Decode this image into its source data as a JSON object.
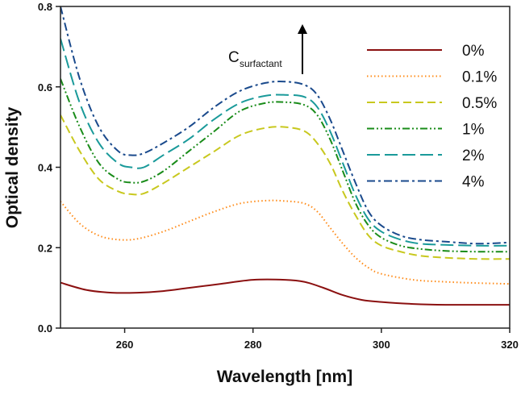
{
  "chart_data": {
    "type": "line",
    "title": "",
    "xlabel": "Wavelength [nm]",
    "ylabel": "Optical density",
    "xlim": [
      250,
      320
    ],
    "ylim": [
      0.0,
      0.8
    ],
    "xticks": [
      "260",
      "280",
      "300",
      "320"
    ],
    "xtick_values": [
      260,
      280,
      300,
      320
    ],
    "yticks": [
      "0.0",
      "0.2",
      "0.4",
      "0.6",
      "0.8"
    ],
    "ytick_values": [
      0.0,
      0.2,
      0.4,
      0.6,
      0.8
    ],
    "grid": false,
    "legend_position": "top-right",
    "annotation": {
      "main": "C",
      "subscript": "surfactant",
      "arrow": "up"
    },
    "series": [
      {
        "name": "0%",
        "color": "#8b1010",
        "dash": "solid",
        "x": [
          250,
          254,
          258,
          262,
          266,
          270,
          275,
          280,
          285,
          288,
          291,
          294,
          297,
          300,
          305,
          310,
          320
        ],
        "y": [
          0.113,
          0.095,
          0.088,
          0.088,
          0.092,
          0.1,
          0.11,
          0.12,
          0.12,
          0.115,
          0.1,
          0.082,
          0.07,
          0.065,
          0.06,
          0.058,
          0.058
        ]
      },
      {
        "name": "0.1%",
        "color": "#ff8c1a",
        "dash": "dot",
        "x": [
          250,
          253,
          256,
          259,
          262,
          266,
          270,
          274,
          278,
          282,
          285,
          288,
          290,
          292,
          294,
          296,
          298,
          300,
          305,
          310,
          315,
          320
        ],
        "y": [
          0.315,
          0.26,
          0.23,
          0.22,
          0.222,
          0.24,
          0.265,
          0.29,
          0.31,
          0.317,
          0.316,
          0.31,
          0.29,
          0.25,
          0.21,
          0.175,
          0.15,
          0.135,
          0.12,
          0.115,
          0.112,
          0.11
        ]
      },
      {
        "name": "0.5%",
        "color": "#c8c81e",
        "dash": "dash",
        "x": [
          250,
          253,
          256,
          259,
          261,
          263,
          266,
          270,
          274,
          278,
          282,
          285,
          288,
          290,
          292,
          294,
          296,
          298,
          300,
          303,
          306,
          310,
          315,
          320
        ],
        "y": [
          0.53,
          0.44,
          0.37,
          0.34,
          0.333,
          0.335,
          0.36,
          0.4,
          0.44,
          0.48,
          0.498,
          0.5,
          0.49,
          0.46,
          0.41,
          0.34,
          0.28,
          0.23,
          0.205,
          0.19,
          0.18,
          0.175,
          0.172,
          0.172
        ]
      },
      {
        "name": "1%",
        "color": "#1a8c1a",
        "dash": "dashdotdot",
        "x": [
          250,
          253,
          256,
          259,
          261,
          263,
          266,
          270,
          274,
          278,
          282,
          285,
          288,
          290,
          292,
          294,
          296,
          298,
          300,
          303,
          306,
          310,
          315,
          320
        ],
        "y": [
          0.62,
          0.5,
          0.41,
          0.37,
          0.362,
          0.365,
          0.39,
          0.44,
          0.49,
          0.54,
          0.56,
          0.562,
          0.555,
          0.53,
          0.47,
          0.39,
          0.31,
          0.255,
          0.225,
          0.205,
          0.197,
          0.192,
          0.19,
          0.19
        ]
      },
      {
        "name": "2%",
        "color": "#1a9a9a",
        "dash": "longdash",
        "x": [
          250,
          253,
          256,
          259,
          261,
          263,
          266,
          270,
          274,
          278,
          282,
          285,
          288,
          290,
          292,
          294,
          296,
          298,
          300,
          303,
          306,
          310,
          315,
          320
        ],
        "y": [
          0.72,
          0.56,
          0.46,
          0.41,
          0.4,
          0.4,
          0.43,
          0.47,
          0.52,
          0.56,
          0.578,
          0.58,
          0.575,
          0.55,
          0.49,
          0.41,
          0.33,
          0.27,
          0.24,
          0.22,
          0.21,
          0.207,
          0.205,
          0.205
        ]
      },
      {
        "name": "4%",
        "color": "#1a4a8c",
        "dash": "dashdot",
        "x": [
          250,
          253,
          256,
          259,
          261,
          263,
          266,
          270,
          274,
          278,
          282,
          285,
          288,
          290,
          292,
          294,
          296,
          298,
          300,
          303,
          306,
          310,
          315,
          320
        ],
        "y": [
          0.8,
          0.62,
          0.5,
          0.44,
          0.43,
          0.435,
          0.46,
          0.5,
          0.55,
          0.59,
          0.61,
          0.613,
          0.605,
          0.58,
          0.52,
          0.44,
          0.36,
          0.29,
          0.255,
          0.23,
          0.22,
          0.215,
          0.21,
          0.213
        ]
      }
    ]
  }
}
